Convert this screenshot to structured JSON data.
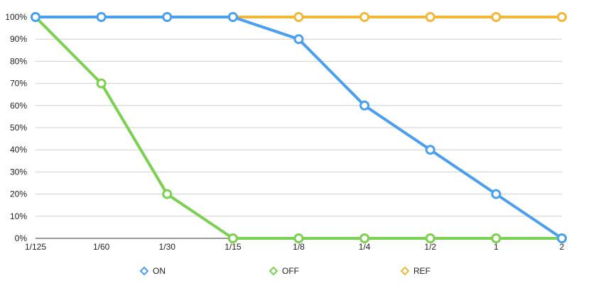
{
  "chart_data": {
    "type": "line",
    "title": "",
    "xlabel": "",
    "ylabel": "",
    "categories": [
      "1/125",
      "1/60",
      "1/30",
      "1/15",
      "1/8",
      "1/4",
      "1/2",
      "1",
      "2"
    ],
    "y_ticks": [
      "0%",
      "10%",
      "20%",
      "30%",
      "40%",
      "50%",
      "60%",
      "70%",
      "80%",
      "90%",
      "100%"
    ],
    "ylim": [
      0,
      100
    ],
    "y_unit": "%",
    "grid": true,
    "legend_position": "bottom",
    "series": [
      {
        "name": "ON",
        "color": "#4a9ff0",
        "values": [
          100,
          100,
          100,
          100,
          90,
          60,
          40,
          20,
          0
        ]
      },
      {
        "name": "OFF",
        "color": "#7ad14f",
        "values": [
          100,
          70,
          20,
          0,
          0,
          0,
          0,
          0,
          0
        ]
      },
      {
        "name": "REF",
        "color": "#f0b738",
        "values": [
          null,
          null,
          null,
          100,
          100,
          100,
          100,
          100,
          100
        ]
      }
    ]
  }
}
